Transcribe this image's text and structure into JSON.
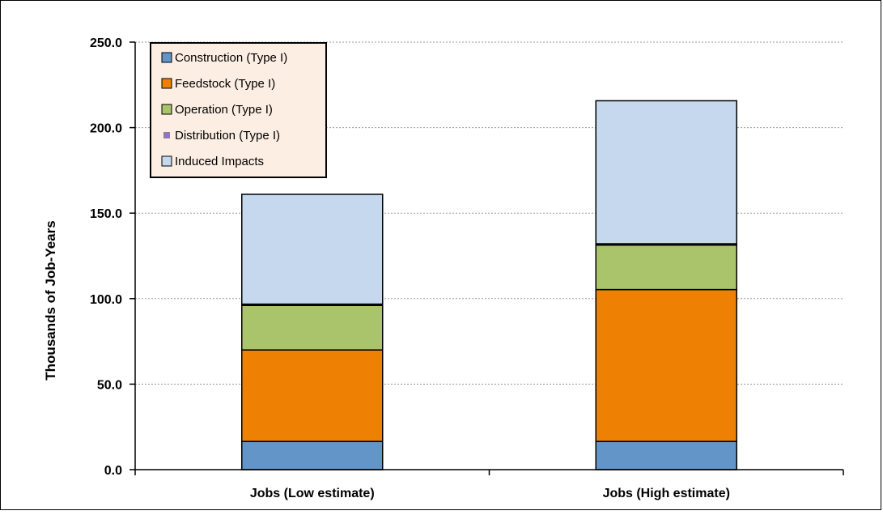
{
  "chart_data": {
    "type": "bar",
    "stacked": true,
    "title": "",
    "xlabel": "",
    "ylabel": "Thousands of Job-Years",
    "ylim": [
      0,
      250
    ],
    "yticks": [
      "0.0",
      "50.0",
      "100.0",
      "150.0",
      "200.0",
      "250.0"
    ],
    "grid": true,
    "legend_position": "top-left",
    "categories": [
      "Jobs (Low estimate)",
      "Jobs (High estimate)"
    ],
    "series": [
      {
        "name": "Construction (Type I)",
        "color": "#6395c8",
        "values": [
          16.5,
          16.5
        ]
      },
      {
        "name": "Feedstock (Type I)",
        "color": "#ee8104",
        "values": [
          53.5,
          88.8
        ]
      },
      {
        "name": "Operation (Type I)",
        "color": "#a9c46b",
        "values": [
          26.0,
          26.0
        ]
      },
      {
        "name": "Distribution (Type I)",
        "color": "#8e79b5",
        "values": [
          0.8,
          0.8
        ]
      },
      {
        "name": "Induced Impacts",
        "color": "#c5d8ed",
        "values": [
          64.2,
          83.6
        ]
      }
    ]
  }
}
